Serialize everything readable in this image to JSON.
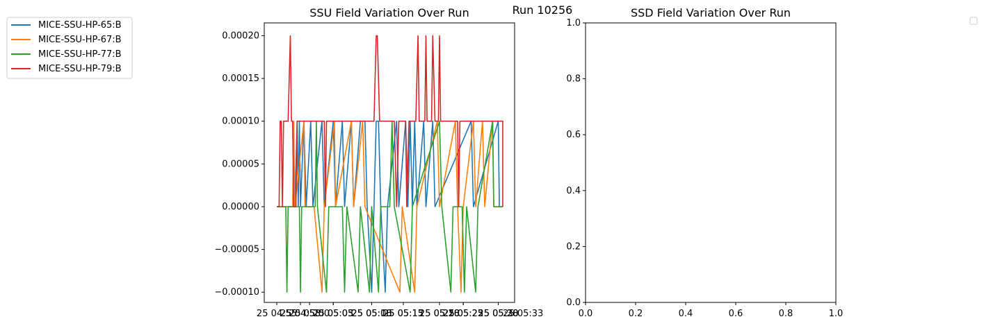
{
  "figure_title": "Run 10256",
  "legend": {
    "placement": "upper-left",
    "entries": [
      {
        "label": "MICE-SSU-HP-65:B",
        "color": "#1f77b4"
      },
      {
        "label": "MICE-SSU-HP-67:B",
        "color": "#ff7f0e"
      },
      {
        "label": "MICE-SSU-HP-77:B",
        "color": "#2ca02c"
      },
      {
        "label": "MICE-SSU-HP-79:B",
        "color": "#d62728"
      }
    ]
  },
  "chart_data": [
    {
      "type": "line",
      "title": "SSU Field Variation Over Run",
      "xlabel": "",
      "ylabel": "",
      "ylim": [
        -0.000112,
        0.000215
      ],
      "xlim": [
        0,
        1
      ],
      "grid": false,
      "yticks": [
        -0.0001,
        -5e-05,
        0.0,
        5e-05,
        0.0001,
        0.00015,
        0.0002
      ],
      "yticklabels": [
        "−0.00010",
        "−0.00005",
        "0.00000",
        "0.00005",
        "0.00010",
        "0.00015",
        "0.00020"
      ],
      "xticks": [
        0.0,
        0.145,
        0.25,
        0.42,
        0.56,
        0.72,
        0.825,
        0.98
      ],
      "xticklabels": [
        "25 04:55",
        "25 05:00",
        "25 05:05",
        "25 05:10",
        "25 05:15",
        "25 05:20",
        "25 05:25",
        "25 05:30"
      ],
      "xticks_2": [
        0.105,
        0.25,
        0.42,
        0.56,
        0.72,
        0.825,
        0.98
      ],
      "xticklabels_2": [
        "25 04:58",
        "25 05:03",
        "25 05:08",
        "25 05:13",
        "25 05:18",
        "25 05:23",
        "25 05:28"
      ],
      "xticks_3": [
        1.09
      ],
      "xticklabels_3": [
        "25 05:33"
      ],
      "series": [
        {
          "name": "MICE-SSU-HP-65:B",
          "color": "#1f77b4",
          "points": [
            [
              0.0,
              0
            ],
            [
              0.08,
              0
            ],
            [
              0.09,
              0.0001
            ],
            [
              0.095,
              0
            ],
            [
              0.1,
              0.0001
            ],
            [
              0.105,
              0
            ],
            [
              0.12,
              0.0001
            ],
            [
              0.13,
              0
            ],
            [
              0.15,
              0.0001
            ],
            [
              0.16,
              0
            ],
            [
              0.2,
              0.0001
            ],
            [
              0.21,
              0
            ],
            [
              0.25,
              0.0001
            ],
            [
              0.26,
              0
            ],
            [
              0.29,
              0.0001
            ],
            [
              0.3,
              0
            ],
            [
              0.33,
              0.0001
            ],
            [
              0.34,
              0
            ],
            [
              0.37,
              0.0001
            ],
            [
              0.39,
              0.0001
            ],
            [
              0.4,
              0
            ],
            [
              0.42,
              -0.0001
            ],
            [
              0.43,
              0
            ],
            [
              0.44,
              0.0001
            ],
            [
              0.45,
              0.0001
            ],
            [
              0.46,
              0
            ],
            [
              0.48,
              -0.0001
            ],
            [
              0.49,
              0
            ],
            [
              0.53,
              0.0001
            ],
            [
              0.54,
              0
            ],
            [
              0.57,
              0.0001
            ],
            [
              0.58,
              0
            ],
            [
              0.59,
              0.0001
            ],
            [
              0.6,
              0
            ],
            [
              0.61,
              0.0001
            ],
            [
              0.62,
              0
            ],
            [
              0.65,
              0.0001
            ],
            [
              0.66,
              0
            ],
            [
              0.69,
              0.0001
            ],
            [
              0.7,
              0
            ],
            [
              0.86,
              0.0001
            ],
            [
              0.87,
              0
            ],
            [
              0.98,
              0.0001
            ],
            [
              0.985,
              0
            ],
            [
              1.0,
              0
            ]
          ]
        },
        {
          "name": "MICE-SSU-HP-67:B",
          "color": "#ff7f0e",
          "points": [
            [
              0.0,
              0
            ],
            [
              0.07,
              0
            ],
            [
              0.075,
              0.0001
            ],
            [
              0.08,
              0
            ],
            [
              0.12,
              0.0001
            ],
            [
              0.125,
              0
            ],
            [
              0.155,
              0
            ],
            [
              0.165,
              0
            ],
            [
              0.2,
              -0.0001
            ],
            [
              0.21,
              0
            ],
            [
              0.255,
              0.0001
            ],
            [
              0.26,
              0
            ],
            [
              0.33,
              0.0001
            ],
            [
              0.34,
              0
            ],
            [
              0.38,
              0.0001
            ],
            [
              0.39,
              0
            ],
            [
              0.545,
              -0.0001
            ],
            [
              0.555,
              0
            ],
            [
              0.61,
              -0.0001
            ],
            [
              0.62,
              0
            ],
            [
              0.71,
              0.0001
            ],
            [
              0.72,
              0
            ],
            [
              0.79,
              0.0001
            ],
            [
              0.8,
              0
            ],
            [
              0.815,
              -0.0001
            ],
            [
              0.825,
              0
            ],
            [
              0.87,
              0.0001
            ],
            [
              0.88,
              0
            ],
            [
              0.91,
              0.0001
            ],
            [
              0.92,
              0
            ],
            [
              0.955,
              0.0001
            ],
            [
              0.96,
              0
            ],
            [
              1.0,
              0
            ]
          ]
        },
        {
          "name": "MICE-SSU-HP-77:B",
          "color": "#2ca02c",
          "points": [
            [
              0.0,
              0
            ],
            [
              0.04,
              0
            ],
            [
              0.045,
              -0.0001
            ],
            [
              0.05,
              0
            ],
            [
              0.1,
              0
            ],
            [
              0.105,
              -0.0001
            ],
            [
              0.11,
              0
            ],
            [
              0.17,
              0
            ],
            [
              0.175,
              0.0001
            ],
            [
              0.18,
              0
            ],
            [
              0.22,
              -0.0001
            ],
            [
              0.23,
              0
            ],
            [
              0.29,
              0
            ],
            [
              0.3,
              -0.0001
            ],
            [
              0.31,
              0
            ],
            [
              0.36,
              -0.0001
            ],
            [
              0.37,
              0
            ],
            [
              0.41,
              -0.0001
            ],
            [
              0.42,
              0
            ],
            [
              0.45,
              -0.0001
            ],
            [
              0.46,
              0
            ],
            [
              0.5,
              0
            ],
            [
              0.51,
              0.0001
            ],
            [
              0.52,
              0
            ],
            [
              0.59,
              -0.0001
            ],
            [
              0.6,
              0
            ],
            [
              0.72,
              0.0001
            ],
            [
              0.73,
              0
            ],
            [
              0.77,
              -0.0001
            ],
            [
              0.78,
              0
            ],
            [
              0.82,
              0
            ],
            [
              0.83,
              -0.0001
            ],
            [
              0.84,
              0
            ],
            [
              0.88,
              -0.0001
            ],
            [
              0.89,
              0
            ],
            [
              0.955,
              0.0001
            ],
            [
              0.96,
              0
            ],
            [
              1.0,
              0
            ]
          ]
        },
        {
          "name": "MICE-SSU-HP-79:B",
          "color": "#d62728",
          "points": [
            [
              0.0,
              0
            ],
            [
              0.01,
              0
            ],
            [
              0.015,
              0.0001
            ],
            [
              0.02,
              0.0001
            ],
            [
              0.025,
              0
            ],
            [
              0.03,
              0.0001
            ],
            [
              0.05,
              0.0001
            ],
            [
              0.06,
              0.0002
            ],
            [
              0.065,
              0.0001
            ],
            [
              0.07,
              0.0001
            ],
            [
              0.075,
              0
            ],
            [
              0.085,
              0
            ],
            [
              0.09,
              0.0001
            ],
            [
              0.21,
              0.0001
            ],
            [
              0.215,
              0
            ],
            [
              0.22,
              0.0001
            ],
            [
              0.43,
              0.0001
            ],
            [
              0.44,
              0.0002
            ],
            [
              0.445,
              0.0002
            ],
            [
              0.455,
              0.0001
            ],
            [
              0.52,
              0.0001
            ],
            [
              0.53,
              0
            ],
            [
              0.54,
              0.0001
            ],
            [
              0.57,
              0.0001
            ],
            [
              0.575,
              0
            ],
            [
              0.585,
              0.0001
            ],
            [
              0.615,
              0.0001
            ],
            [
              0.625,
              0.0002
            ],
            [
              0.63,
              0.0001
            ],
            [
              0.655,
              0.0001
            ],
            [
              0.66,
              0.0002
            ],
            [
              0.665,
              0.0001
            ],
            [
              0.685,
              0.0001
            ],
            [
              0.69,
              0.0002
            ],
            [
              0.7,
              0.0001
            ],
            [
              0.715,
              0.0001
            ],
            [
              0.72,
              0.0002
            ],
            [
              0.725,
              0.0001
            ],
            [
              0.8,
              0.0001
            ],
            [
              0.805,
              0
            ],
            [
              0.81,
              0.0001
            ],
            [
              1.0,
              0.0001
            ],
            [
              1.0,
              0
            ]
          ]
        }
      ]
    },
    {
      "type": "line",
      "title": "SSD Field Variation Over Run",
      "xlabel": "",
      "ylabel": "",
      "xlim": [
        0.0,
        1.0
      ],
      "ylim": [
        0.0,
        1.0
      ],
      "grid": false,
      "xticks": [
        0.0,
        0.2,
        0.4,
        0.6,
        0.8,
        1.0
      ],
      "xticklabels": [
        "0.0",
        "0.2",
        "0.4",
        "0.6",
        "0.8",
        "1.0"
      ],
      "yticks": [
        0.0,
        0.2,
        0.4,
        0.6,
        0.8,
        1.0
      ],
      "yticklabels": [
        "0.0",
        "0.2",
        "0.4",
        "0.6",
        "0.8",
        "1.0"
      ],
      "series": []
    }
  ]
}
